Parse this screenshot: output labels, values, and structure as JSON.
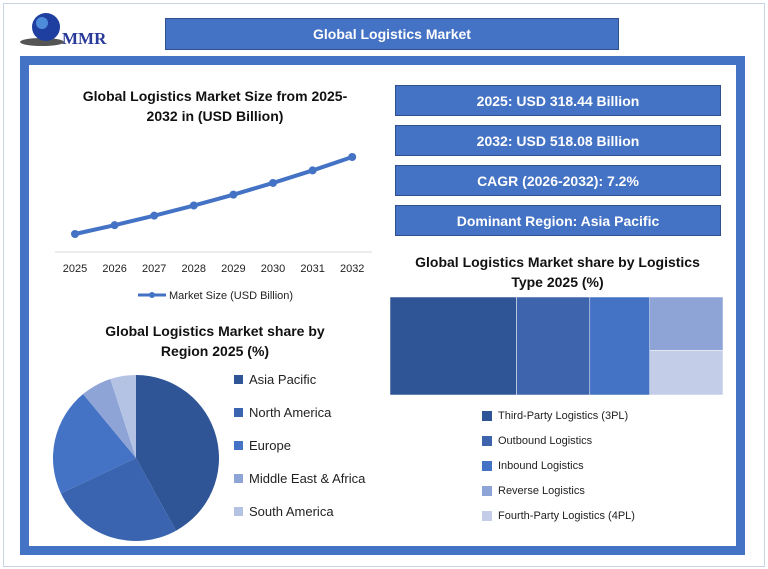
{
  "logo": {
    "text": "MMR"
  },
  "header": {
    "title": "Global Logistics Market"
  },
  "info_boxes": [
    "2025: USD 318.44 Billion",
    "2032: USD 518.08 Billion",
    "CAGR (2026-2032): 7.2%",
    "Dominant Region: Asia Pacific"
  ],
  "chart_data": [
    {
      "type": "line",
      "title": "Global Logistics Market Size from 2025-2032 in (USD Billion)",
      "title_lines": [
        "Global Logistics Market Size from 2025-",
        "2032 in (USD Billion)"
      ],
      "categories": [
        "2025",
        "2026",
        "2027",
        "2028",
        "2029",
        "2030",
        "2031",
        "2032"
      ],
      "series": [
        {
          "name": "Market Size (USD Billion)",
          "values": [
            318.44,
            341.4,
            366.0,
            392.3,
            420.5,
            450.8,
            483.3,
            518.08
          ],
          "color": "#4472c4"
        }
      ],
      "grid": false,
      "legend": "bottom"
    },
    {
      "type": "pie",
      "title": "Global Logistics Market share by Region 2025 (%)",
      "title_lines": [
        "Global Logistics Market share by",
        "Region 2025 (%)"
      ],
      "labels": [
        "Asia Pacific",
        "North America",
        "Europe",
        "Middle East & Africa",
        "South America"
      ],
      "values": [
        42,
        26,
        21,
        6,
        5
      ],
      "colors": [
        "#2f5597",
        "#3a63b0",
        "#4472c4",
        "#8ea3d6",
        "#b4c2e4"
      ],
      "legend": "right"
    },
    {
      "type": "treemap",
      "title": "Global Logistics Market share by Logistics Type 2025 (%)",
      "title_lines": [
        "Global Logistics Market share by Logistics",
        "Type 2025 (%)"
      ],
      "labels": [
        "Third-Party Logistics (3PL)",
        "Outbound Logistics",
        "Inbound Logistics",
        "Reverse Logistics",
        "Fourth-Party Logistics (4PL)"
      ],
      "values": [
        38,
        22,
        18,
        12,
        10
      ],
      "colors": [
        "#2f5597",
        "#3d64ad",
        "#4472c4",
        "#8ea3d6",
        "#c3cde8"
      ],
      "legend": "bottom"
    }
  ]
}
